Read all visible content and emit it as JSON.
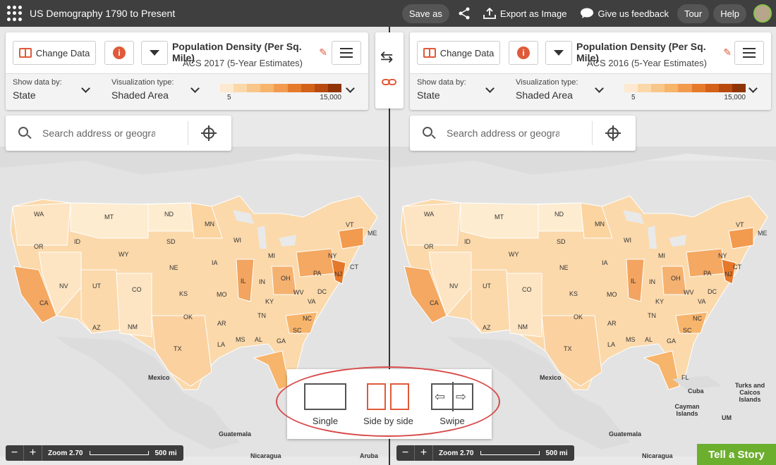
{
  "app": {
    "title": "US Demography 1790 to Present"
  },
  "topbar": {
    "save_label": "Save as",
    "export_label": "Export as Image",
    "feedback_label": "Give us feedback",
    "tour_label": "Tour",
    "help_label": "Help"
  },
  "left": {
    "change_data_label": "Change Data",
    "dataset_title": "Population Density (Per Sq. Mile)",
    "dataset_source": "ACS 2017 (5-Year Estimates)",
    "show_by_label": "Show data by:",
    "show_by_value": "State",
    "vis_label": "Visualization type:",
    "vis_value": "Shaded Area",
    "legend_min": "5",
    "legend_max": "15,000",
    "search_placeholder": "Search address or geogra",
    "zoom_label": "Zoom 2.70",
    "scale_label": "500 mi"
  },
  "right": {
    "change_data_label": "Change Data",
    "dataset_title": "Population Density (Per Sq. Mile)",
    "dataset_source": "ACS 2016 (5-Year Estimates)",
    "show_by_label": "Show data by:",
    "show_by_value": "State",
    "vis_label": "Visualization type:",
    "vis_value": "Shaded Area",
    "legend_min": "5",
    "legend_max": "15,000",
    "search_placeholder": "Search address or geogra",
    "zoom_label": "Zoom 2.70",
    "scale_label": "500 mi"
  },
  "legend_colors": [
    "#fde9cf",
    "#fbd8a9",
    "#f9c68a",
    "#f7b46b",
    "#f29a4e",
    "#e57a2a",
    "#d4611a",
    "#b84a0f",
    "#8f3505"
  ],
  "map_labels": {
    "states": [
      "WA",
      "MT",
      "ND",
      "MN",
      "WI",
      "MI",
      "ME",
      "VT",
      "NY",
      "CT",
      "OR",
      "ID",
      "SD",
      "WY",
      "IA",
      "NE",
      "IL",
      "IN",
      "OH",
      "PA",
      "NJ",
      "NV",
      "UT",
      "CO",
      "KS",
      "MO",
      "KY",
      "WV",
      "VA",
      "DC",
      "CA",
      "OK",
      "AR",
      "TN",
      "NC",
      "AZ",
      "NM",
      "MS",
      "AL",
      "GA",
      "SC",
      "TX",
      "LA",
      "FL"
    ],
    "mexico": "Mexico",
    "guatemala": "Guatemala",
    "nicaragua": "Nicaragua",
    "aruba": "Aruba",
    "cuba": "Cuba",
    "cayman": "Cayman Islands",
    "turks": "Turks and Caicos Islands",
    "um": "UM"
  },
  "modes": {
    "single": "Single",
    "side": "Side by side",
    "swipe": "Swipe"
  },
  "tell_story_label": "Tell a Story"
}
